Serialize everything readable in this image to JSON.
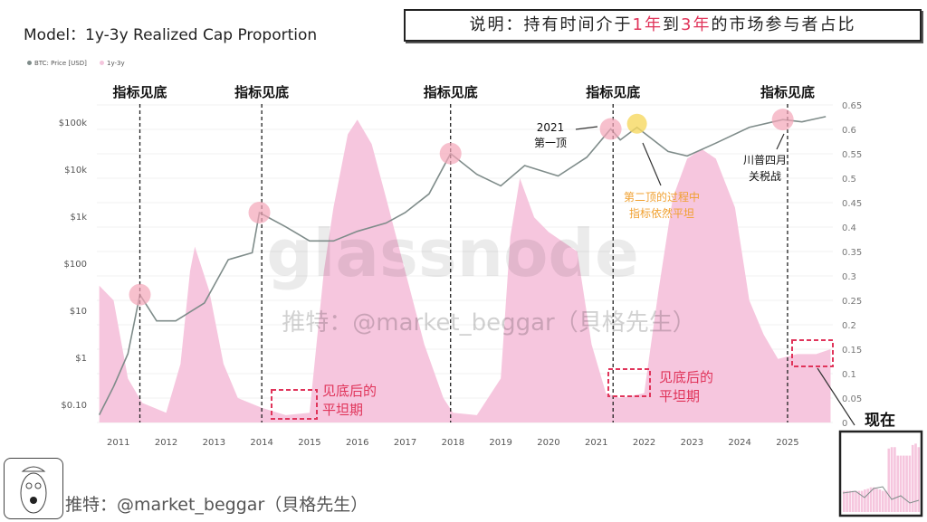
{
  "title": "Model：1y-3y Realized Cap Proportion",
  "note": {
    "prefix": "说明：持有时间介于",
    "h1": "1年",
    "mid": "到",
    "h2": "3年",
    "suffix": "的市场参与者占比"
  },
  "legend": [
    {
      "label": "BTC: Price [USD]",
      "color": "#7f8c8a"
    },
    {
      "label": "1y-3y",
      "color": "#f4c6dd"
    }
  ],
  "watermark": "glassnode",
  "watermark2": "推特：@market_beggar（貝格先生）",
  "footer": "推特：@market_beggar（貝格先生）",
  "annotations": {
    "bottom_label": "指标见底",
    "top2021": "2021",
    "top2021b": "第一顶",
    "second_top": "第二顶的过程中",
    "second_top_b": "指标依然平坦",
    "trump": "川普四月",
    "trump_b": "关税战",
    "flat": "见底后的",
    "flat_b": "平坦期",
    "now": "现在"
  },
  "colors": {
    "area": "#f6c6de",
    "price": "#7f8c8a",
    "highlight": "#e0345a",
    "orange": "#f0a030",
    "circle_pink": "#f3a5b8",
    "circle_yellow": "#f6d860"
  },
  "chart_data": {
    "type": "line+area",
    "title": "Model：1y-3y Realized Cap Proportion",
    "x_ticks": [
      "2011",
      "2012",
      "2013",
      "2014",
      "2015",
      "2016",
      "2017",
      "2018",
      "2019",
      "2020",
      "2021",
      "2022",
      "2023",
      "2024",
      "2025"
    ],
    "y_left": {
      "scale": "log",
      "ticks": [
        "$0.10",
        "$1",
        "$10",
        "$100",
        "$1k",
        "$10k",
        "$100k"
      ]
    },
    "y_right": {
      "range": [
        0,
        0.65
      ],
      "ticks": [
        "0",
        "0.05",
        "0.1",
        "0.15",
        "0.2",
        "0.25",
        "0.3",
        "0.35",
        "0.4",
        "0.45",
        "0.5",
        "0.55",
        "0.6",
        "0.65"
      ]
    },
    "grid": true,
    "bottom_markers": [
      2011.45,
      2014.0,
      2017.95,
      2021.35,
      2025.0
    ],
    "series": [
      {
        "name": "1y-3y",
        "type": "area",
        "axis": "right",
        "x": [
          2010.6,
          2010.9,
          2011.2,
          2011.5,
          2012.0,
          2012.3,
          2012.5,
          2012.6,
          2012.9,
          2013.2,
          2013.5,
          2014.0,
          2014.5,
          2015.0,
          2015.3,
          2015.5,
          2015.8,
          2016.0,
          2016.3,
          2016.6,
          2017.0,
          2017.4,
          2017.8,
          2018.0,
          2018.5,
          2019.0,
          2019.2,
          2019.4,
          2019.7,
          2020.0,
          2020.3,
          2020.6,
          2020.9,
          2021.2,
          2021.5,
          2022.0,
          2022.3,
          2022.6,
          2022.9,
          2023.2,
          2023.5,
          2023.9,
          2024.2,
          2024.5,
          2024.8,
          2025.2,
          2025.6,
          2025.9
        ],
        "values": [
          0.28,
          0.25,
          0.09,
          0.04,
          0.02,
          0.12,
          0.31,
          0.36,
          0.27,
          0.12,
          0.05,
          0.03,
          0.015,
          0.02,
          0.31,
          0.44,
          0.59,
          0.62,
          0.57,
          0.46,
          0.31,
          0.16,
          0.05,
          0.02,
          0.015,
          0.09,
          0.38,
          0.5,
          0.42,
          0.39,
          0.37,
          0.35,
          0.16,
          0.06,
          0.05,
          0.06,
          0.27,
          0.46,
          0.54,
          0.56,
          0.54,
          0.44,
          0.25,
          0.18,
          0.13,
          0.14,
          0.14,
          0.15
        ]
      },
      {
        "name": "BTC: Price [USD]",
        "type": "line",
        "axis": "left",
        "x": [
          2010.6,
          2010.9,
          2011.2,
          2011.45,
          2011.8,
          2012.2,
          2012.8,
          2013.3,
          2013.8,
          2013.95,
          2014.5,
          2015.0,
          2015.5,
          2016.0,
          2016.6,
          2017.0,
          2017.5,
          2017.95,
          2018.5,
          2019.0,
          2019.5,
          2020.2,
          2020.8,
          2021.3,
          2021.5,
          2021.85,
          2022.5,
          2022.9,
          2023.5,
          2024.2,
          2024.9,
          2025.3,
          2025.8
        ],
        "values": [
          0.05,
          0.2,
          1,
          18,
          5,
          5,
          12,
          100,
          140,
          1000,
          500,
          250,
          250,
          400,
          600,
          1000,
          2500,
          18000,
          6500,
          3700,
          10000,
          6000,
          15000,
          60000,
          35000,
          65000,
          20000,
          16000,
          30000,
          65000,
          95000,
          85000,
          110000
        ]
      }
    ]
  }
}
